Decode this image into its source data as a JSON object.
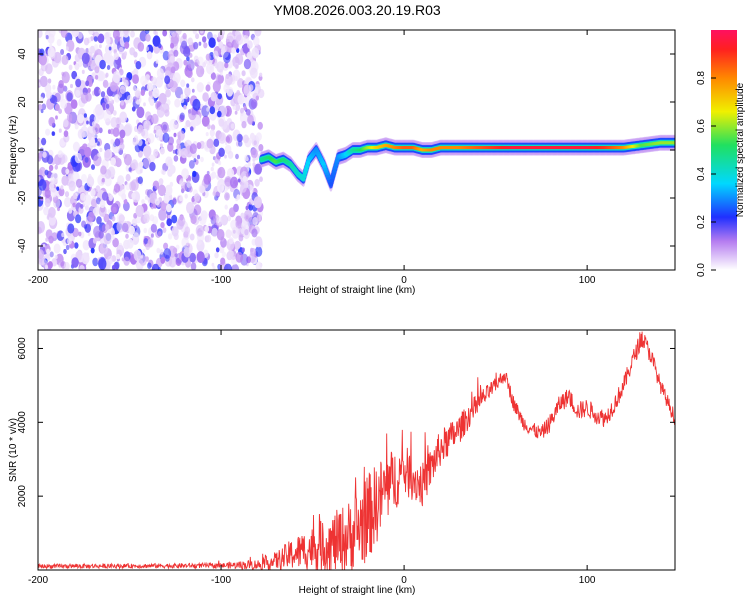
{
  "title": "YM08.2026.003.20.19.R03",
  "chart_data": [
    {
      "type": "heatmap",
      "xlabel": "Height of straight line (km)",
      "ylabel": "Frequency (Hz)",
      "xlim": [
        -200,
        148
      ],
      "ylim": [
        -50,
        50
      ],
      "xticks": [
        -200,
        -100,
        0,
        100
      ],
      "yticks": [
        -40,
        -20,
        0,
        20,
        40
      ],
      "noise_region_x": [
        -200,
        -78
      ],
      "ridge": [
        {
          "x": -78,
          "f": -4,
          "a": 0.45
        },
        {
          "x": -74,
          "f": -3,
          "a": 0.5
        },
        {
          "x": -70,
          "f": -5,
          "a": 0.55
        },
        {
          "x": -66,
          "f": -4,
          "a": 0.5
        },
        {
          "x": -62,
          "f": -6,
          "a": 0.45
        },
        {
          "x": -58,
          "f": -10,
          "a": 0.4
        },
        {
          "x": -55,
          "f": -12,
          "a": 0.4
        },
        {
          "x": -52,
          "f": -4,
          "a": 0.35
        },
        {
          "x": -48,
          "f": 0,
          "a": 0.3
        },
        {
          "x": -44,
          "f": -6,
          "a": 0.35
        },
        {
          "x": -40,
          "f": -14,
          "a": 0.25
        },
        {
          "x": -36,
          "f": -3,
          "a": 0.3
        },
        {
          "x": -32,
          "f": -2,
          "a": 0.35
        },
        {
          "x": -28,
          "f": 0,
          "a": 0.45
        },
        {
          "x": -24,
          "f": 0,
          "a": 0.5
        },
        {
          "x": -20,
          "f": 1,
          "a": 0.6
        },
        {
          "x": -15,
          "f": 1,
          "a": 0.7
        },
        {
          "x": -10,
          "f": 2,
          "a": 0.75
        },
        {
          "x": -5,
          "f": 1,
          "a": 0.8
        },
        {
          "x": 0,
          "f": 1,
          "a": 0.85
        },
        {
          "x": 5,
          "f": 1,
          "a": 0.85
        },
        {
          "x": 10,
          "f": 0,
          "a": 0.75
        },
        {
          "x": 15,
          "f": 0,
          "a": 0.8
        },
        {
          "x": 20,
          "f": 1,
          "a": 0.8
        },
        {
          "x": 30,
          "f": 1,
          "a": 0.8
        },
        {
          "x": 40,
          "f": 1,
          "a": 0.85
        },
        {
          "x": 50,
          "f": 1,
          "a": 0.9
        },
        {
          "x": 60,
          "f": 1,
          "a": 0.95
        },
        {
          "x": 70,
          "f": 1,
          "a": 0.95
        },
        {
          "x": 80,
          "f": 1,
          "a": 0.95
        },
        {
          "x": 90,
          "f": 1,
          "a": 0.95
        },
        {
          "x": 100,
          "f": 1,
          "a": 0.95
        },
        {
          "x": 110,
          "f": 1,
          "a": 0.9
        },
        {
          "x": 120,
          "f": 1,
          "a": 0.8
        },
        {
          "x": 130,
          "f": 2,
          "a": 0.55
        },
        {
          "x": 140,
          "f": 3,
          "a": 0.6
        },
        {
          "x": 148,
          "f": 3,
          "a": 0.6
        }
      ],
      "colorbar": {
        "label": "Normalized spectral amplitude",
        "range": [
          0,
          1
        ],
        "ticks": [
          0.0,
          0.2,
          0.4,
          0.6,
          0.8
        ],
        "tick_labels": [
          "0.0",
          "0.2",
          "0.4",
          "0.6",
          "0.8"
        ]
      }
    },
    {
      "type": "line",
      "xlabel": "Height of straight line (km)",
      "ylabel": "SNR (10 * v/v)",
      "xlim": [
        -200,
        148
      ],
      "ylim": [
        0,
        6500
      ],
      "xticks": [
        -200,
        -100,
        0,
        100
      ],
      "yticks": [
        2000,
        4000,
        6000
      ],
      "series": [
        {
          "name": "SNR",
          "color": "#ee3333",
          "x": [
            -200,
            -150,
            -100,
            -78,
            -70,
            -60,
            -50,
            -40,
            -30,
            -20,
            -10,
            0,
            10,
            20,
            30,
            40,
            50,
            55,
            60,
            65,
            70,
            75,
            80,
            85,
            90,
            95,
            100,
            105,
            110,
            115,
            120,
            125,
            130,
            135,
            140,
            148
          ],
          "y": [
            100,
            110,
            120,
            150,
            250,
            450,
            600,
            700,
            900,
            1400,
            2200,
            2700,
            2300,
            3300,
            3800,
            4500,
            5000,
            5300,
            4500,
            4000,
            3800,
            3700,
            4000,
            4500,
            4700,
            4300,
            4400,
            4200,
            4100,
            4500,
            5000,
            5700,
            6300,
            5800,
            5000,
            4100
          ],
          "noise_amp": [
            60,
            60,
            70,
            150,
            250,
            450,
            600,
            800,
            1000,
            1200,
            1000,
            700,
            600,
            500,
            400,
            300,
            200,
            200,
            200,
            200,
            200,
            200,
            250,
            250,
            250,
            250,
            250,
            250,
            250,
            250,
            250,
            250,
            250,
            250,
            200,
            200
          ]
        }
      ]
    }
  ]
}
